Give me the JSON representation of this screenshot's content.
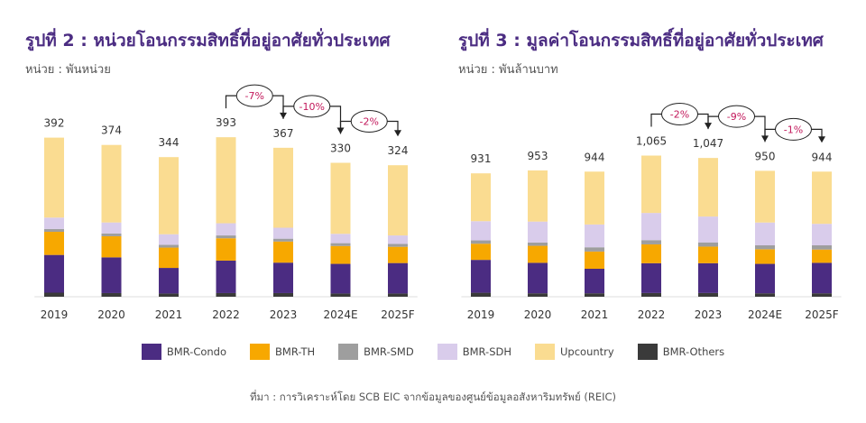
{
  "colors": {
    "bmr_condo": "#4B2C82",
    "bmr_th": "#F7A800",
    "bmr_smd": "#9E9E9E",
    "bmr_sdh": "#D9CCEB",
    "upcountry": "#FADC91",
    "bmr_others": "#3A3A3A",
    "change_label": "#C2185B",
    "title": "#4B2C82"
  },
  "legend": [
    {
      "key": "bmr_condo",
      "label": "BMR-Condo"
    },
    {
      "key": "bmr_th",
      "label": "BMR-TH"
    },
    {
      "key": "bmr_smd",
      "label": "BMR-SMD"
    },
    {
      "key": "bmr_sdh",
      "label": "BMR-SDH"
    },
    {
      "key": "upcountry",
      "label": "Upcountry"
    },
    {
      "key": "bmr_others",
      "label": "BMR-Others"
    }
  ],
  "source": "ที่มา : การวิเคราะห์โดย SCB EIC จากข้อมูลของศูนย์ข้อมูลอสังหาริมทรัพย์ (REIC)",
  "chart_data": [
    {
      "type": "bar",
      "stacked": true,
      "title": "รูปที่ 2 : หน่วยโอนกรรมสิทธิ์ที่อยู่อาศัยทั่วประเทศ",
      "unit": "หน่วย : พันหน่วย",
      "categories": [
        "2019",
        "2020",
        "2021",
        "2022",
        "2023",
        "2024E",
        "2025F"
      ],
      "totals": [
        392,
        374,
        344,
        393,
        367,
        330,
        324
      ],
      "total_labels": [
        "392",
        "374",
        "344",
        "393",
        "367",
        "330",
        "324"
      ],
      "ylim": [
        0,
        420
      ],
      "series": [
        {
          "name": "BMR-Others",
          "key": "bmr_others",
          "values": [
            10,
            9,
            8,
            9,
            9,
            8,
            8
          ]
        },
        {
          "name": "BMR-Condo",
          "key": "bmr_condo",
          "values": [
            93,
            88,
            63,
            80,
            75,
            73,
            75
          ]
        },
        {
          "name": "BMR-TH",
          "key": "bmr_th",
          "values": [
            57,
            52,
            50,
            55,
            52,
            44,
            40
          ]
        },
        {
          "name": "BMR-SMD",
          "key": "bmr_smd",
          "values": [
            7,
            7,
            7,
            7,
            7,
            7,
            7
          ]
        },
        {
          "name": "BMR-SDH",
          "key": "bmr_sdh",
          "values": [
            28,
            27,
            26,
            30,
            27,
            23,
            21
          ]
        },
        {
          "name": "Upcountry",
          "key": "upcountry",
          "values": [
            197,
            191,
            190,
            212,
            197,
            175,
            173
          ]
        }
      ],
      "changes": [
        {
          "from": 3,
          "to": 4,
          "label": "-7%"
        },
        {
          "from": 4,
          "to": 5,
          "label": "-10%"
        },
        {
          "from": 5,
          "to": 6,
          "label": "-2%"
        }
      ]
    },
    {
      "type": "bar",
      "stacked": true,
      "title": "รูปที่ 3 : มูลค่าโอนกรรมสิทธิ์ที่อยู่อาศัยทั่วประเทศ",
      "unit": "หน่วย : พันล้านบาท",
      "categories": [
        "2019",
        "2020",
        "2021",
        "2022",
        "2023",
        "2024E",
        "2025F"
      ],
      "totals": [
        931,
        953,
        944,
        1065,
        1047,
        950,
        944
      ],
      "total_labels": [
        "931",
        "953",
        "944",
        "1,065",
        "1,047",
        "950",
        "944"
      ],
      "ylim": [
        0,
        1150
      ],
      "series": [
        {
          "name": "BMR-Others",
          "key": "bmr_others",
          "values": [
            30,
            26,
            26,
            28,
            28,
            26,
            26
          ]
        },
        {
          "name": "BMR-Condo",
          "key": "bmr_condo",
          "values": [
            248,
            230,
            185,
            225,
            225,
            222,
            230
          ]
        },
        {
          "name": "BMR-TH",
          "key": "bmr_th",
          "values": [
            122,
            128,
            130,
            142,
            125,
            110,
            100
          ]
        },
        {
          "name": "BMR-SMD",
          "key": "bmr_smd",
          "values": [
            25,
            25,
            32,
            32,
            32,
            30,
            32
          ]
        },
        {
          "name": "BMR-SDH",
          "key": "bmr_sdh",
          "values": [
            145,
            158,
            172,
            205,
            195,
            172,
            162
          ]
        },
        {
          "name": "Upcountry",
          "key": "upcountry",
          "values": [
            361,
            386,
            399,
            433,
            442,
            390,
            394
          ]
        }
      ],
      "changes": [
        {
          "from": 3,
          "to": 4,
          "label": "-2%"
        },
        {
          "from": 4,
          "to": 5,
          "label": "-9%"
        },
        {
          "from": 5,
          "to": 6,
          "label": "-1%"
        }
      ]
    }
  ]
}
